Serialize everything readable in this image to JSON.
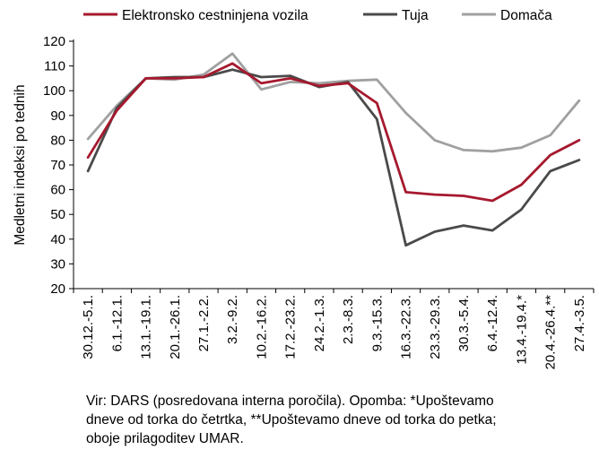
{
  "chart_data": {
    "type": "line",
    "title": "",
    "xlabel": "",
    "ylabel": "Medletni indeksi po tednih",
    "ylim": [
      20,
      120
    ],
    "yticks": [
      20,
      30,
      40,
      50,
      60,
      70,
      80,
      90,
      100,
      110,
      120
    ],
    "grid": false,
    "legend_position": "top",
    "categories": [
      "30.12.-5.1.",
      "6.1.-12.1.",
      "13.1.-19.1.",
      "20.1.-26.1.",
      "27.1.-2.2.",
      "3.2.-9.2.",
      "10.2.-16.2.",
      "17.2.-23.2.",
      "24.2.-1.3.",
      "2.3.-8.3.",
      "9.3.-15.3.",
      "16.3.-22.3.",
      "23.3.-29.3.",
      "30.3.-5.4.",
      "6.4.-12.4.",
      "13.4.-19.4.*",
      "20.4.-26.4.**",
      "27.4.-3.5."
    ],
    "series": [
      {
        "name": "Elektronsko cestninjena vozila",
        "color": "#a6192e",
        "values": [
          73,
          92,
          105,
          105,
          105.5,
          111,
          103,
          105,
          102,
          103,
          95,
          59,
          58,
          57.5,
          55.5,
          62,
          74,
          80
        ]
      },
      {
        "name": "Tuja",
        "color": "#4a4a4a",
        "values": [
          67.5,
          93,
          105,
          105.5,
          105.5,
          108.5,
          105.5,
          106,
          101.5,
          103.5,
          88.5,
          37.5,
          43,
          45.5,
          43.5,
          52,
          67.5,
          72
        ]
      },
      {
        "name": "Domača",
        "color": "#a0a0a0",
        "values": [
          80.5,
          94,
          105,
          104.5,
          106.5,
          115,
          100.5,
          103.5,
          103,
          104,
          104.5,
          91,
          80,
          76,
          75.5,
          77,
          82,
          96
        ]
      }
    ]
  },
  "note": {
    "line1": "Vir: DARS (posredovana interna poročila). Opomba: *Upoštevamo",
    "line2": "dneve od torka do četrtka, **Upoštevamo dneve od torka do petka;",
    "line3": "oboje prilagoditev UMAR."
  }
}
